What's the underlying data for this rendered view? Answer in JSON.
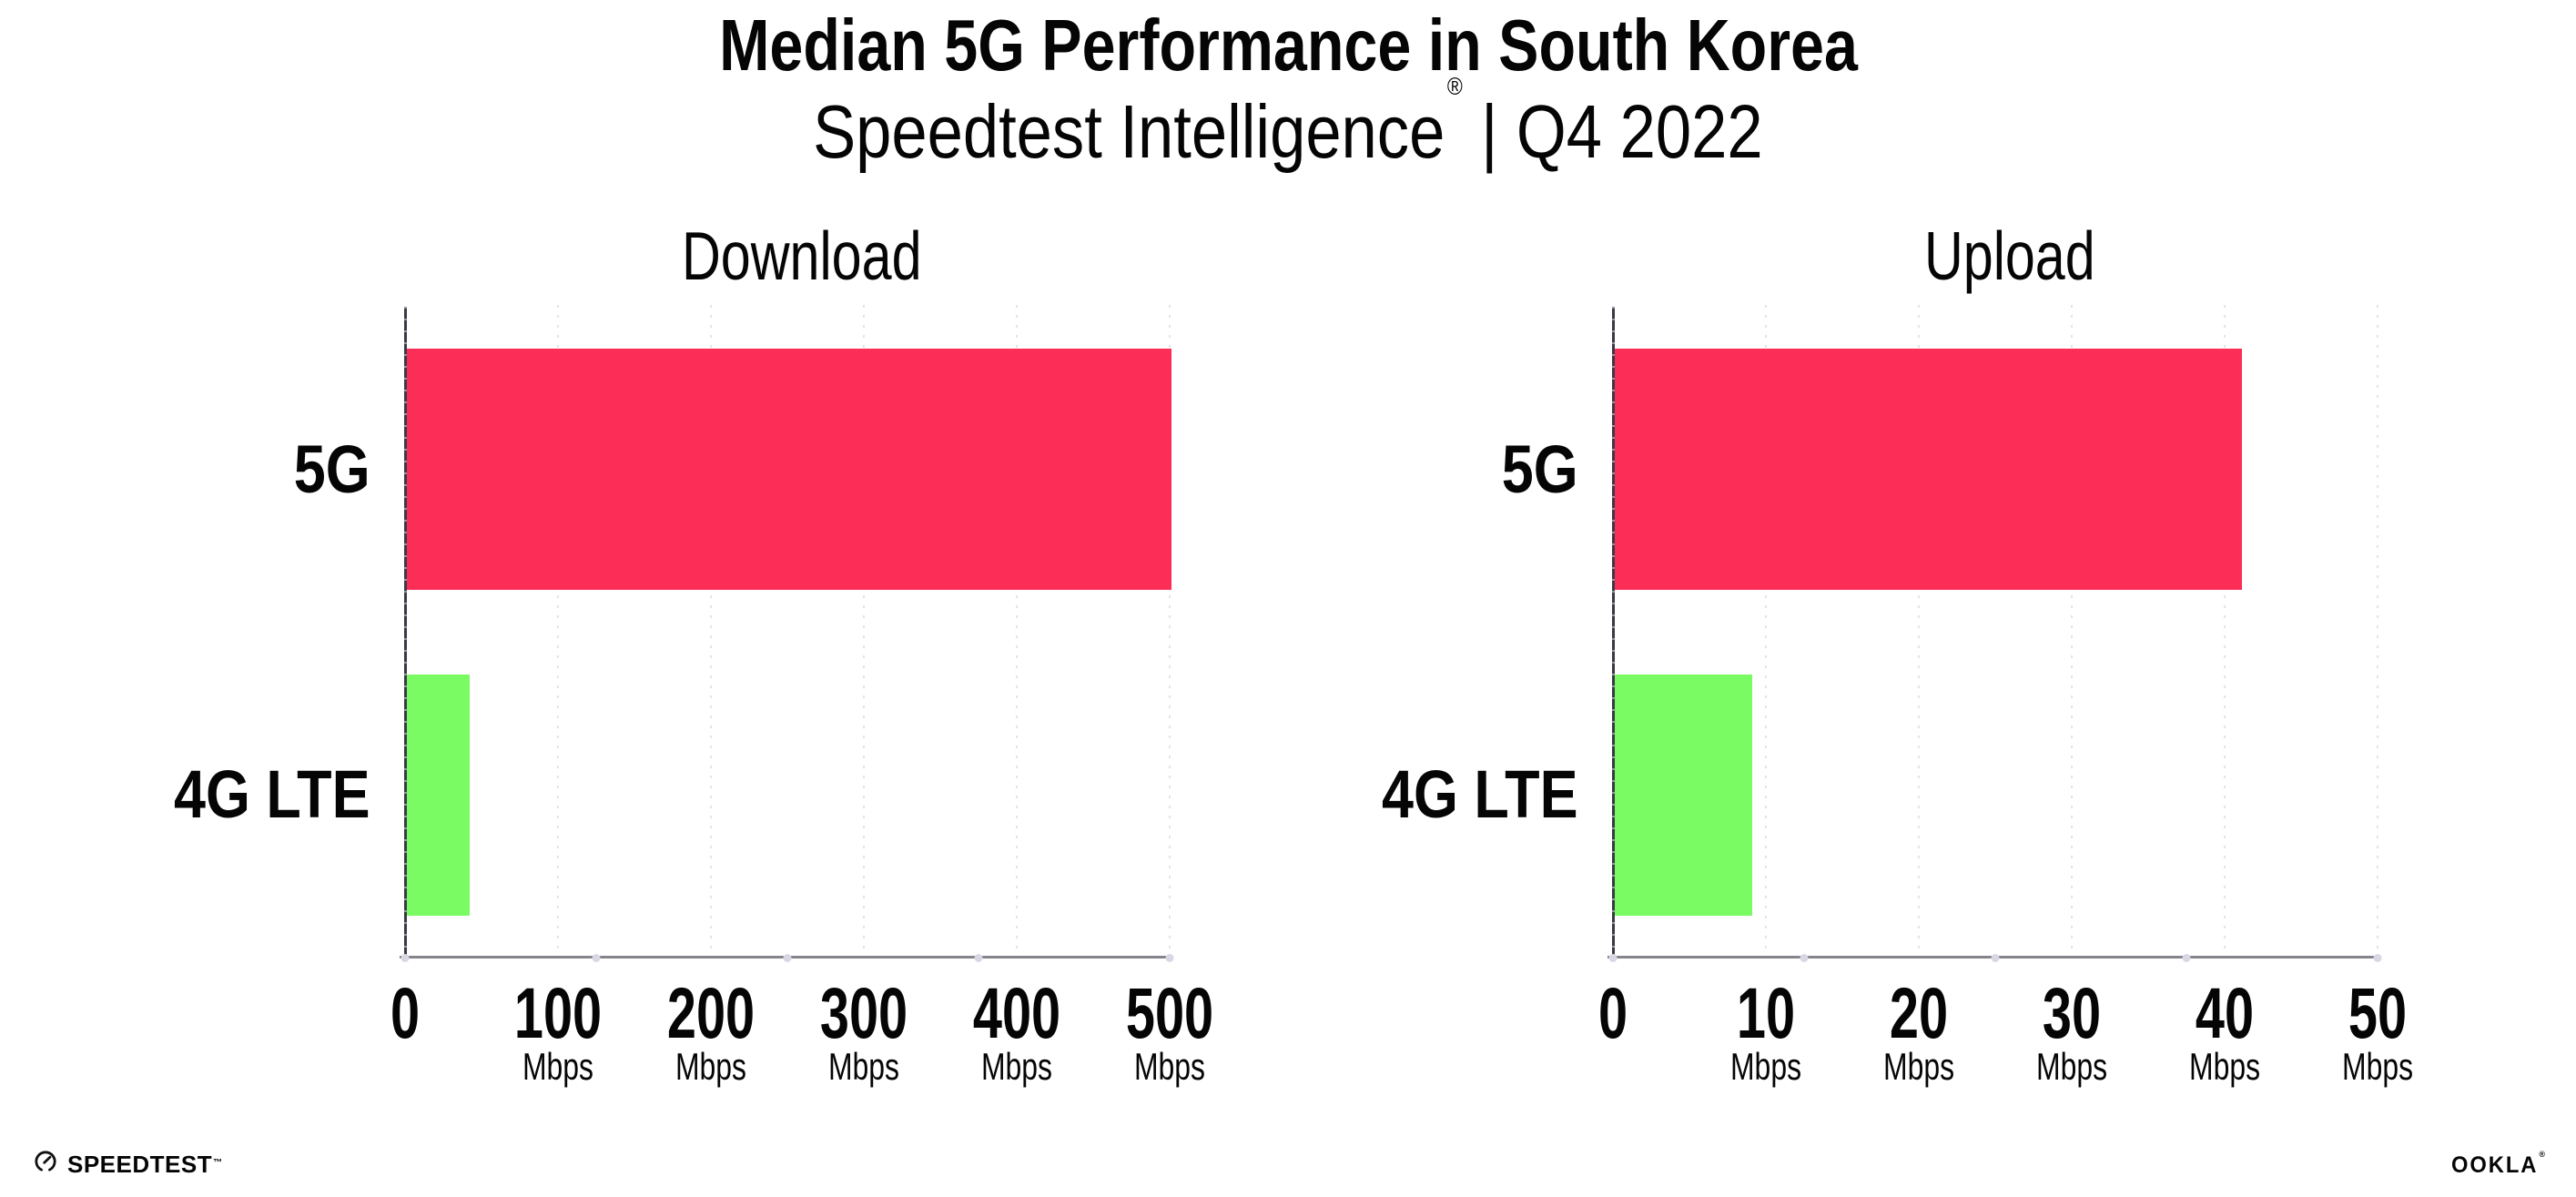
{
  "header": {
    "title": "Median 5G Performance in South Korea",
    "subtitle": {
      "brand": "Speedtest Intelligence",
      "registered": "®",
      "separator": "|",
      "period": "Q4 2022"
    }
  },
  "chart_data": [
    {
      "type": "bar",
      "orientation": "horizontal",
      "title": "Download",
      "categories": [
        "5G",
        "4G LTE"
      ],
      "values": [
        500,
        41
      ],
      "unit": "Mbps",
      "xlim": [
        0,
        500
      ],
      "xticks": [
        0,
        100,
        200,
        300,
        400,
        500
      ],
      "bar_colors": [
        "#FC2E58",
        "#7BFB63"
      ],
      "grid": "dotted-vertical-gridlines",
      "legend": "none"
    },
    {
      "type": "bar",
      "orientation": "horizontal",
      "title": "Upload",
      "categories": [
        "5G",
        "4G LTE"
      ],
      "values": [
        41,
        9
      ],
      "unit": "Mbps",
      "xlim": [
        0,
        50
      ],
      "xticks": [
        0,
        10,
        20,
        30,
        40,
        50
      ],
      "bar_colors": [
        "#FC2E58",
        "#7BFB63"
      ],
      "grid": "dotted-vertical-gridlines",
      "legend": "none"
    }
  ],
  "colors": {
    "bar_5g": "#FC2E58",
    "bar_4g_lte": "#7BFB63",
    "gridline": "#E3E3EA",
    "x_axis": "#85858B",
    "y_axis": "#3A3A46"
  },
  "footer": {
    "speedtest": {
      "label": "SPEEDTEST",
      "trademark": "™"
    },
    "ookla": {
      "label": "OOKLA",
      "registered": "®"
    }
  }
}
